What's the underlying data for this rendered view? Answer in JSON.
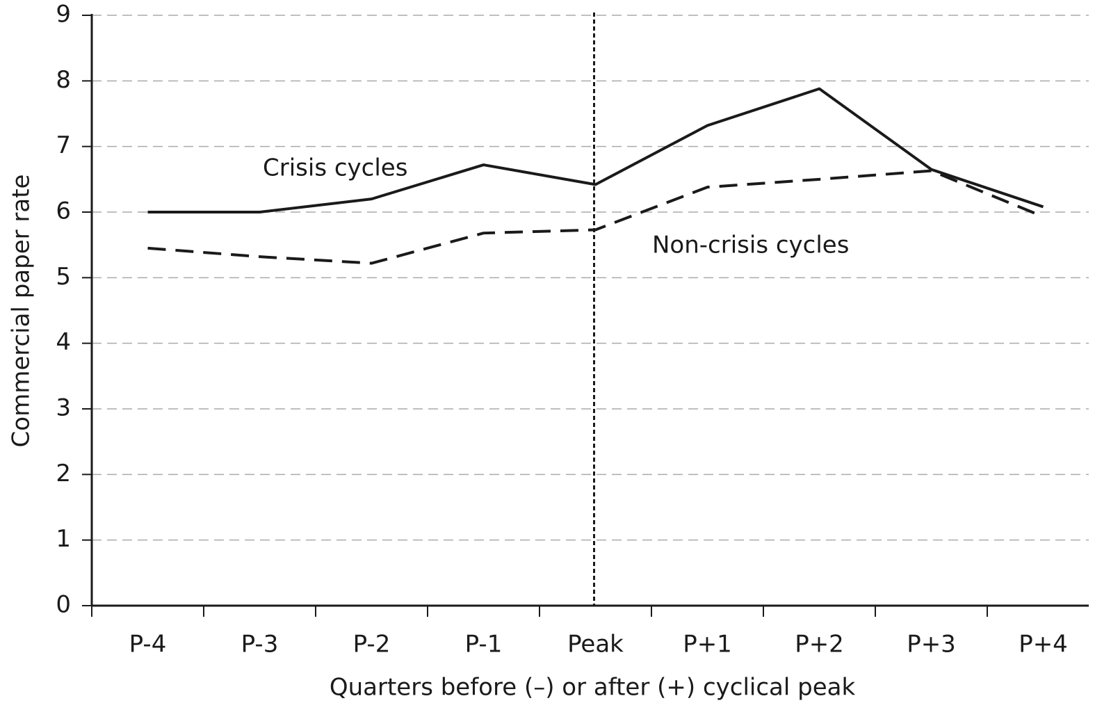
{
  "chart_data": {
    "type": "line",
    "x_label": "Quarters before (–) or after (+) cyclical peak",
    "y_label": "Commercial paper rate",
    "categories": [
      "P-4",
      "P-3",
      "P-2",
      "P-1",
      "Peak",
      "P+1",
      "P+2",
      "P+3",
      "P+4"
    ],
    "series": [
      {
        "name": "Crisis cycles",
        "color": "#1a1a1a",
        "line_style": "solid",
        "values": [
          6.0,
          6.0,
          6.2,
          6.72,
          6.42,
          7.32,
          7.88,
          6.65,
          6.08
        ]
      },
      {
        "name": "Non-crisis cycles",
        "color": "#1a1a1a",
        "line_style": "dashed",
        "values": [
          5.45,
          5.32,
          5.22,
          5.68,
          5.73,
          6.38,
          6.5,
          6.63,
          5.93
        ]
      }
    ],
    "ylim": [
      0,
      9
    ],
    "yticks": [
      0,
      1,
      2,
      3,
      4,
      5,
      6,
      7,
      8,
      9
    ],
    "grid": true
  }
}
